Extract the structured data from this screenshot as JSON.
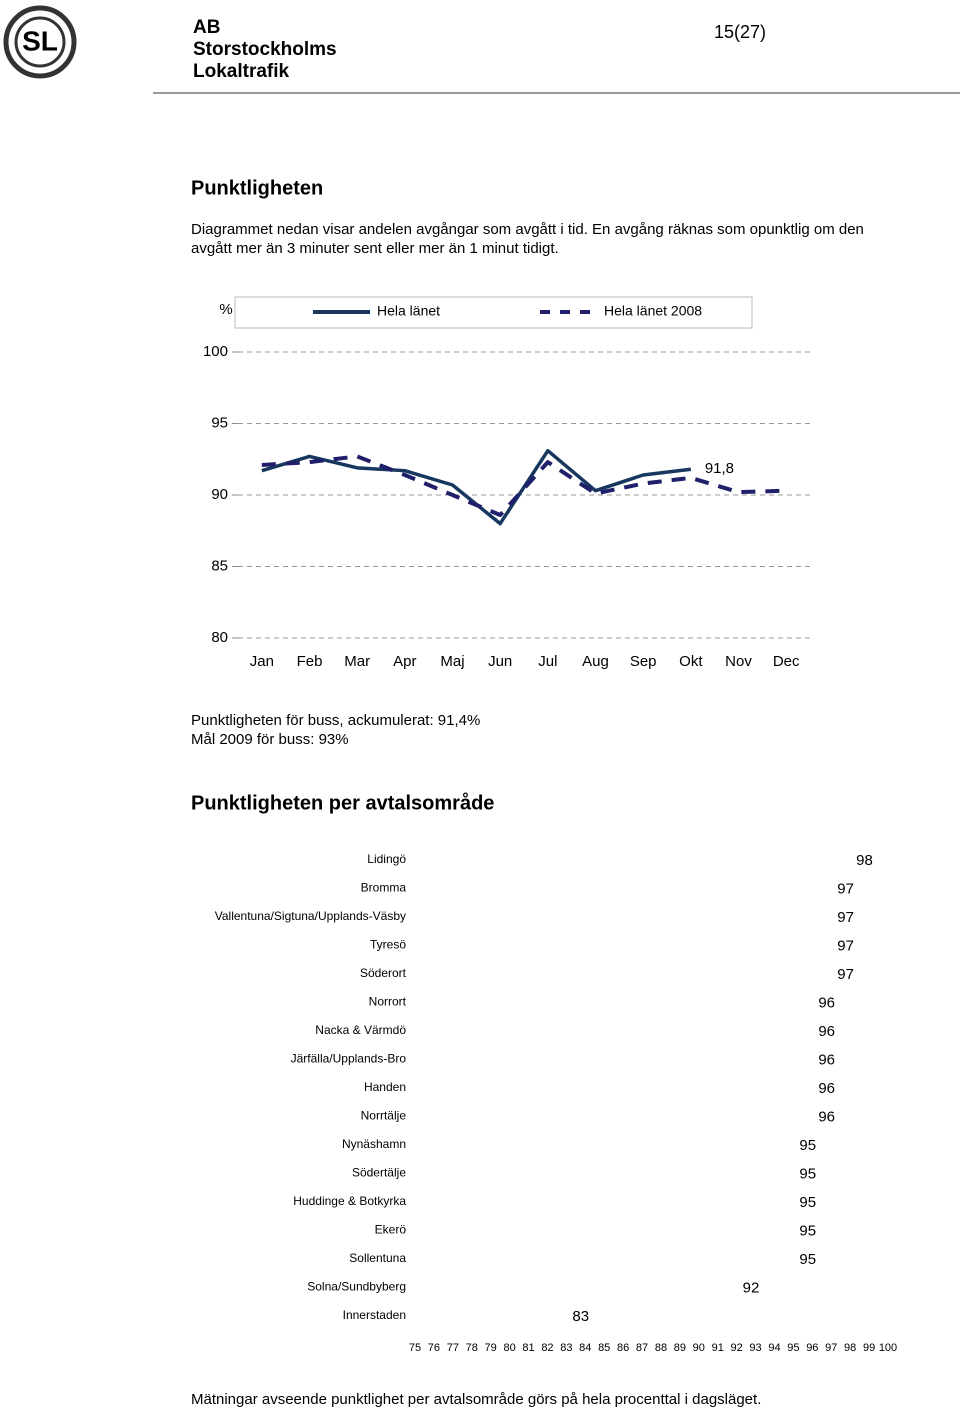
{
  "header": {
    "logo": "SL",
    "company": [
      "AB",
      "Storstockholms",
      "Lokaltrafik"
    ],
    "page": "15(27)"
  },
  "title": "Punktligheten",
  "intro": [
    "Diagrammet nedan visar andelen avgångar som avgått i tid. En avgång räknas som opunktlig om den",
    "avgått mer än 3 minuter sent eller mer än 1 minut tidigt."
  ],
  "summary": [
    "Punktligheten för buss, ackumulerat: 91,4%",
    "Mål 2009 för buss: 93%"
  ],
  "section_title": "Punktligheten per avtalsområde",
  "footnote": "Mätningar avseende punktlighet per avtalsområde görs på hela procenttal i dagsläget.",
  "chart_data": [
    {
      "type": "line",
      "y_label": "%",
      "categories": [
        "Jan",
        "Feb",
        "Mar",
        "Apr",
        "Maj",
        "Jun",
        "Jul",
        "Aug",
        "Sep",
        "Okt",
        "Nov",
        "Dec"
      ],
      "series": [
        {
          "name": "Hela länet",
          "color": "#17375e",
          "dashed": false,
          "values": [
            91.7,
            92.7,
            91.9,
            91.7,
            90.7,
            88.0,
            93.1,
            90.3,
            91.4,
            91.8,
            null,
            null
          ],
          "value_labels": [
            null,
            null,
            null,
            null,
            null,
            null,
            null,
            null,
            null,
            "91,8",
            null,
            null
          ]
        },
        {
          "name": "Hela länet 2008",
          "color": "#1f1f6b",
          "dashed": true,
          "values": [
            92.1,
            92.3,
            92.7,
            91.4,
            90.0,
            88.6,
            92.3,
            90.1,
            90.8,
            91.2,
            90.2,
            90.3
          ]
        }
      ],
      "ylim": [
        80,
        100
      ],
      "yticks": [
        80,
        85,
        90,
        95,
        100
      ],
      "grid": true,
      "legend": "top"
    },
    {
      "type": "bar",
      "orientation": "horizontal",
      "color": "#ffffff",
      "categories": [
        "Lidingö",
        "Bromma",
        "Vallentuna/Sigtuna/Upplands-Väsby",
        "Tyresö",
        "Söderort",
        "Norrort",
        "Nacka & Värmdö",
        "Järfälla/Upplands-Bro",
        "Handen",
        "Norrtälje",
        "Nynäshamn",
        "Södertälje",
        "Huddinge & Botkyrka",
        "Ekerö",
        "Sollentuna",
        "Solna/Sundbyberg",
        "Innerstaden"
      ],
      "values": [
        98,
        97,
        97,
        97,
        97,
        96,
        96,
        96,
        96,
        96,
        95,
        95,
        95,
        95,
        95,
        92,
        83
      ],
      "xlim": [
        75,
        100
      ],
      "xticks": [
        75,
        76,
        77,
        78,
        79,
        80,
        81,
        82,
        83,
        84,
        85,
        86,
        87,
        88,
        89,
        90,
        91,
        92,
        93,
        94,
        95,
        96,
        97,
        98,
        99,
        100
      ]
    }
  ]
}
